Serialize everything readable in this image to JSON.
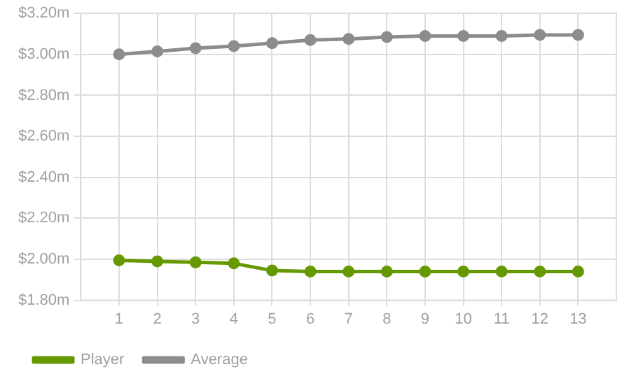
{
  "chart_data": {
    "type": "line",
    "x": [
      1,
      2,
      3,
      4,
      5,
      6,
      7,
      8,
      9,
      10,
      11,
      12,
      13
    ],
    "xlim": [
      0,
      14
    ],
    "xticks": [
      1,
      2,
      3,
      4,
      5,
      6,
      7,
      8,
      9,
      10,
      11,
      12,
      13
    ],
    "ylim": [
      1.8,
      3.2
    ],
    "yticks": [
      {
        "value": 1.8,
        "label": "$1.80m"
      },
      {
        "value": 2.0,
        "label": "$2.00m"
      },
      {
        "value": 2.2,
        "label": "$2.20m"
      },
      {
        "value": 2.4,
        "label": "$2.40m"
      },
      {
        "value": 2.6,
        "label": "$2.60m"
      },
      {
        "value": 2.8,
        "label": "$2.80m"
      },
      {
        "value": 3.0,
        "label": "$3.00m"
      },
      {
        "value": 3.2,
        "label": "$3.20m"
      }
    ],
    "grid": true,
    "legend": "bottom left",
    "marker": "circle",
    "line_style": "solid",
    "series": [
      {
        "name": "Player",
        "color": "#669900",
        "values": [
          1.995,
          1.99,
          1.985,
          1.98,
          1.945,
          1.94,
          1.94,
          1.94,
          1.94,
          1.94,
          1.94,
          1.94,
          1.94
        ]
      },
      {
        "name": "Average",
        "color": "#8c8c8c",
        "values": [
          3.0,
          3.015,
          3.03,
          3.04,
          3.055,
          3.07,
          3.075,
          3.085,
          3.09,
          3.09,
          3.09,
          3.095,
          3.095
        ]
      }
    ]
  }
}
